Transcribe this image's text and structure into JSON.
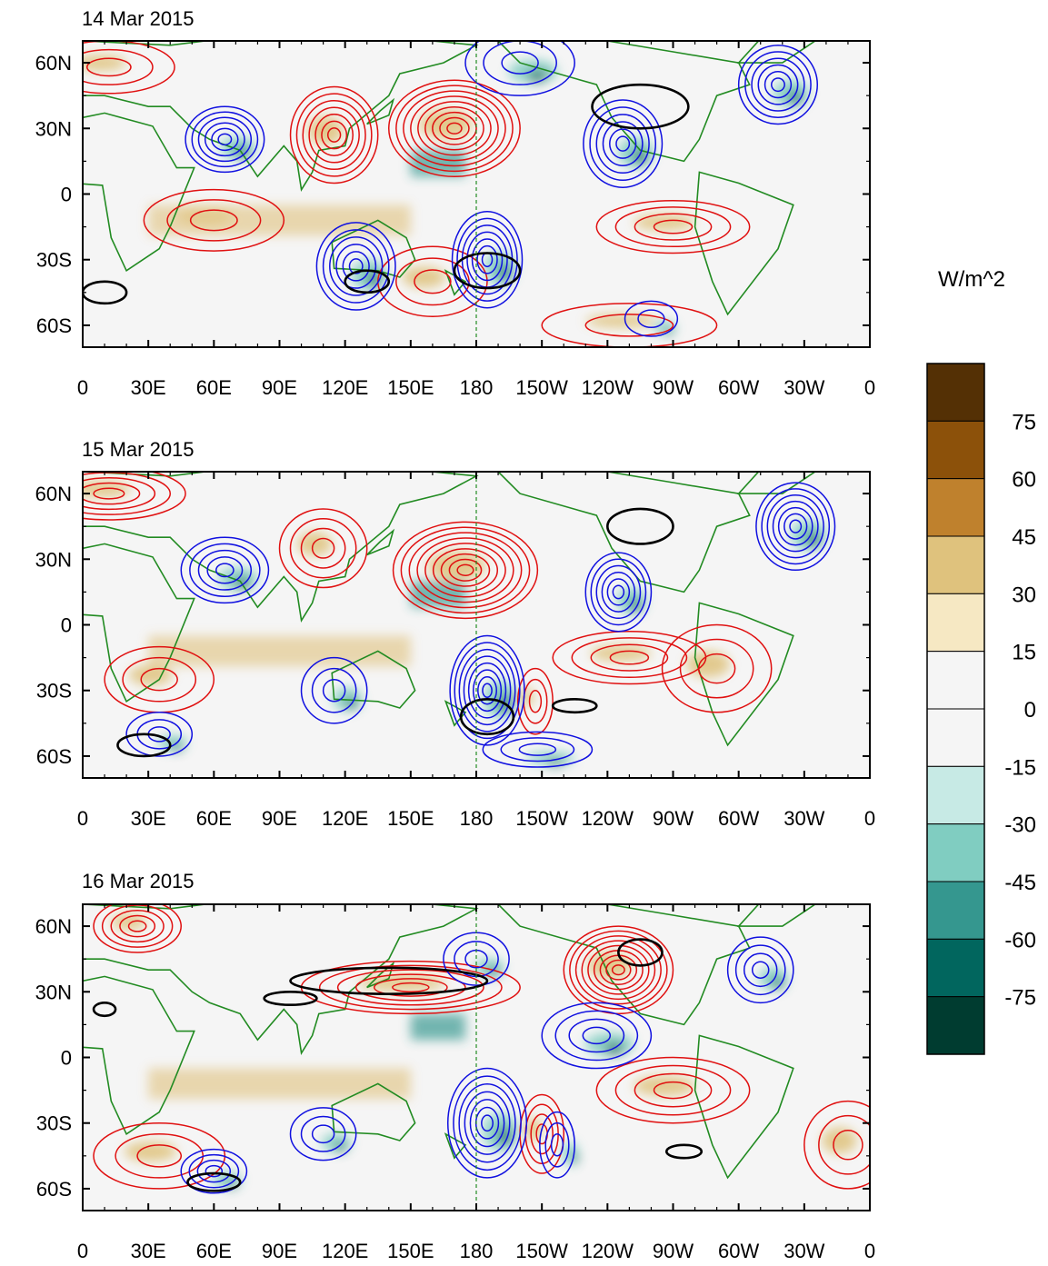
{
  "chart_data": {
    "type": "heatmap",
    "colorbar": {
      "unit": "W/m^2",
      "labels": [
        "75",
        "60",
        "45",
        "30",
        "15",
        "0",
        "-15",
        "-30",
        "-45",
        "-60",
        "-75"
      ],
      "colors": [
        "#543005",
        "#8c510a",
        "#bf812d",
        "#dfc27d",
        "#f6e8c3",
        "#f5f5f5",
        "#f5f5f5",
        "#c7eae5",
        "#80cdc1",
        "#35978f",
        "#01665e",
        "#003c30"
      ]
    },
    "axes": {
      "x_ticks": [
        "0",
        "30E",
        "60E",
        "90E",
        "120E",
        "150E",
        "180",
        "150W",
        "120W",
        "90W",
        "60W",
        "30W",
        "0"
      ],
      "y_ticks": [
        "60N",
        "30N",
        "0",
        "30S",
        "60S"
      ],
      "xlim": [
        0,
        360
      ],
      "ylim": [
        -70,
        70
      ]
    },
    "panels": [
      {
        "title": "14 Mar 2015",
        "positive_contours": [
          {
            "lon": 170,
            "lat": 30,
            "rx": 30,
            "ry": 22,
            "n": 9
          },
          {
            "lon": 115,
            "lat": 27,
            "rx": 20,
            "ry": 22,
            "n": 7
          },
          {
            "lon": 12,
            "lat": 58,
            "rx": 30,
            "ry": 12,
            "n": 3
          },
          {
            "lon": 270,
            "lat": -15,
            "rx": 35,
            "ry": 12,
            "n": 4
          },
          {
            "lon": 60,
            "lat": -12,
            "rx": 32,
            "ry": 14,
            "n": 3
          },
          {
            "lon": 160,
            "lat": -40,
            "rx": 25,
            "ry": 16,
            "n": 3
          },
          {
            "lon": 250,
            "lat": -60,
            "rx": 40,
            "ry": 10,
            "n": 2
          }
        ],
        "negative_contours": [
          {
            "lon": 65,
            "lat": 25,
            "rx": 18,
            "ry": 15,
            "n": 6
          },
          {
            "lon": 125,
            "lat": -33,
            "rx": 18,
            "ry": 20,
            "n": 6
          },
          {
            "lon": 185,
            "lat": -30,
            "rx": 16,
            "ry": 22,
            "n": 7
          },
          {
            "lon": 247,
            "lat": 23,
            "rx": 18,
            "ry": 20,
            "n": 6
          },
          {
            "lon": 318,
            "lat": 50,
            "rx": 18,
            "ry": 18,
            "n": 6
          },
          {
            "lon": 200,
            "lat": 60,
            "rx": 25,
            "ry": 15,
            "n": 3
          },
          {
            "lon": 260,
            "lat": -57,
            "rx": 12,
            "ry": 8,
            "n": 2
          }
        ],
        "zero_contours": [
          {
            "lon": 255,
            "lat": 40,
            "rx": 22,
            "ry": 10
          },
          {
            "lon": 10,
            "lat": -45,
            "rx": 10,
            "ry": 5
          },
          {
            "lon": 130,
            "lat": -40,
            "rx": 10,
            "ry": 5
          },
          {
            "lon": 185,
            "lat": -35,
            "rx": 15,
            "ry": 8
          }
        ]
      },
      {
        "title": "15 Mar 2015",
        "positive_contours": [
          {
            "lon": 175,
            "lat": 25,
            "rx": 33,
            "ry": 22,
            "n": 9
          },
          {
            "lon": 110,
            "lat": 35,
            "rx": 20,
            "ry": 18,
            "n": 4
          },
          {
            "lon": 12,
            "lat": 60,
            "rx": 35,
            "ry": 12,
            "n": 5
          },
          {
            "lon": 250,
            "lat": -15,
            "rx": 35,
            "ry": 12,
            "n": 4
          },
          {
            "lon": 35,
            "lat": -25,
            "rx": 25,
            "ry": 15,
            "n": 3
          },
          {
            "lon": 207,
            "lat": -35,
            "rx": 8,
            "ry": 15,
            "n": 3
          },
          {
            "lon": 290,
            "lat": -20,
            "rx": 25,
            "ry": 20,
            "n": 3
          }
        ],
        "negative_contours": [
          {
            "lon": 65,
            "lat": 25,
            "rx": 20,
            "ry": 15,
            "n": 5
          },
          {
            "lon": 185,
            "lat": -30,
            "rx": 17,
            "ry": 25,
            "n": 8
          },
          {
            "lon": 245,
            "lat": 15,
            "rx": 15,
            "ry": 18,
            "n": 6
          },
          {
            "lon": 326,
            "lat": 45,
            "rx": 18,
            "ry": 20,
            "n": 7
          },
          {
            "lon": 208,
            "lat": -57,
            "rx": 25,
            "ry": 8,
            "n": 3
          },
          {
            "lon": 115,
            "lat": -30,
            "rx": 15,
            "ry": 15,
            "n": 3
          },
          {
            "lon": 35,
            "lat": -50,
            "rx": 15,
            "ry": 10,
            "n": 3
          }
        ],
        "zero_contours": [
          {
            "lon": 255,
            "lat": 45,
            "rx": 15,
            "ry": 8
          },
          {
            "lon": 185,
            "lat": -42,
            "rx": 12,
            "ry": 8
          },
          {
            "lon": 28,
            "lat": -55,
            "rx": 12,
            "ry": 5
          },
          {
            "lon": 225,
            "lat": -37,
            "rx": 10,
            "ry": 3
          }
        ]
      },
      {
        "title": "16 Mar 2015",
        "positive_contours": [
          {
            "lon": 150,
            "lat": 32,
            "rx": 50,
            "ry": 12,
            "n": 6
          },
          {
            "lon": 245,
            "lat": 40,
            "rx": 25,
            "ry": 20,
            "n": 9
          },
          {
            "lon": 25,
            "lat": 60,
            "rx": 20,
            "ry": 12,
            "n": 5
          },
          {
            "lon": 270,
            "lat": -15,
            "rx": 35,
            "ry": 15,
            "n": 4
          },
          {
            "lon": 35,
            "lat": -45,
            "rx": 30,
            "ry": 15,
            "n": 3
          },
          {
            "lon": 210,
            "lat": -35,
            "rx": 10,
            "ry": 18,
            "n": 4
          },
          {
            "lon": 350,
            "lat": -40,
            "rx": 20,
            "ry": 20,
            "n": 3
          }
        ],
        "negative_contours": [
          {
            "lon": 60,
            "lat": -52,
            "rx": 15,
            "ry": 10,
            "n": 4
          },
          {
            "lon": 185,
            "lat": -30,
            "rx": 18,
            "ry": 25,
            "n": 7
          },
          {
            "lon": 217,
            "lat": -40,
            "rx": 8,
            "ry": 15,
            "n": 3
          },
          {
            "lon": 310,
            "lat": 40,
            "rx": 15,
            "ry": 15,
            "n": 4
          },
          {
            "lon": 235,
            "lat": 10,
            "rx": 25,
            "ry": 15,
            "n": 4
          },
          {
            "lon": 110,
            "lat": -35,
            "rx": 15,
            "ry": 12,
            "n": 3
          },
          {
            "lon": 180,
            "lat": 45,
            "rx": 15,
            "ry": 12,
            "n": 3
          }
        ],
        "zero_contours": [
          {
            "lon": 140,
            "lat": 35,
            "rx": 45,
            "ry": 6
          },
          {
            "lon": 255,
            "lat": 48,
            "rx": 10,
            "ry": 6
          },
          {
            "lon": 60,
            "lat": -57,
            "rx": 12,
            "ry": 4
          },
          {
            "lon": 275,
            "lat": -43,
            "rx": 8,
            "ry": 3
          },
          {
            "lon": 95,
            "lat": 27,
            "rx": 12,
            "ry": 3
          },
          {
            "lon": 10,
            "lat": 22,
            "rx": 5,
            "ry": 3
          }
        ]
      }
    ]
  }
}
